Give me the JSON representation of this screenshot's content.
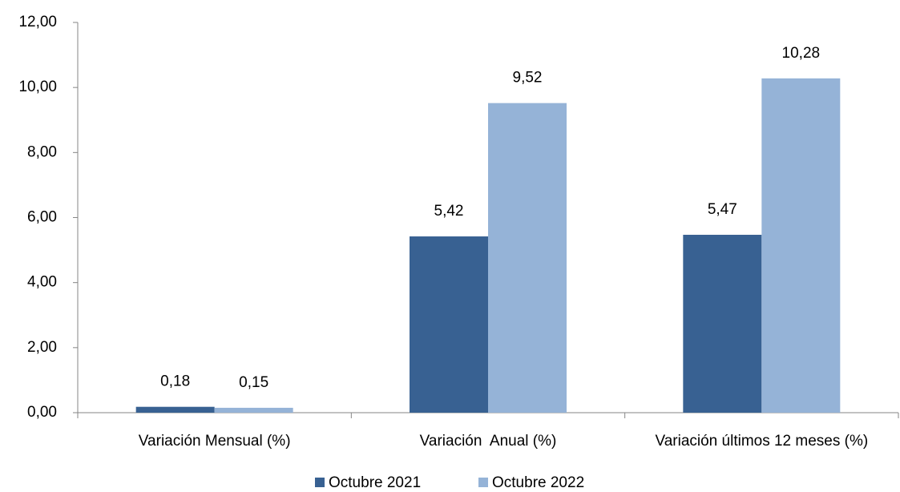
{
  "chart_data": {
    "type": "bar",
    "categories": [
      "Variación Mensual (%)",
      "Variación  Anual (%)",
      "Variación últimos 12 meses (%)"
    ],
    "series": [
      {
        "name": "Octubre 2021",
        "color": "#386192",
        "values": [
          0.18,
          5.42,
          5.47
        ],
        "value_labels": [
          "0,18",
          "5,42",
          "5,47"
        ]
      },
      {
        "name": "Octubre 2022",
        "color": "#95b3d7",
        "values": [
          0.15,
          9.52,
          10.28
        ],
        "value_labels": [
          "0,15",
          "9,52",
          "10,28"
        ]
      }
    ],
    "ylim": [
      0,
      12
    ],
    "yticks": [
      {
        "value": 0,
        "label": "0,00"
      },
      {
        "value": 2,
        "label": "2,00"
      },
      {
        "value": 4,
        "label": "4,00"
      },
      {
        "value": 6,
        "label": "6,00"
      },
      {
        "value": 8,
        "label": "8,00"
      },
      {
        "value": 10,
        "label": "10,00"
      },
      {
        "value": 12,
        "label": "12,00"
      }
    ],
    "grid": false,
    "legend": "bottom"
  }
}
